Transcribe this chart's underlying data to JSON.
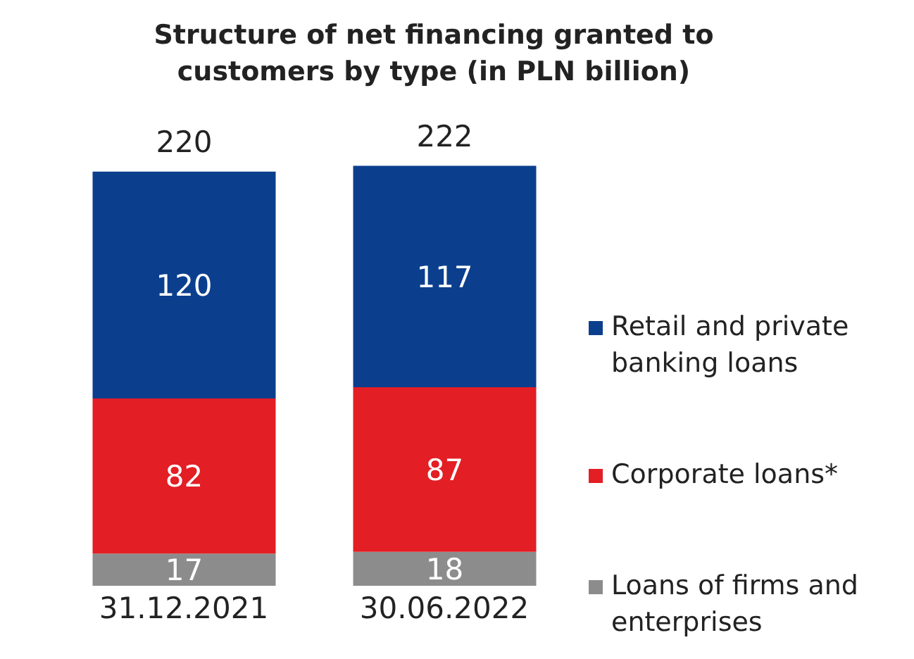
{
  "chart_data": {
    "type": "bar",
    "title": "Structure of net financing granted to customers by type (in PLN billion)",
    "categories": [
      "31.12.2021",
      "30.06.2022"
    ],
    "stacked": true,
    "data_labels": true,
    "totals": [
      "220",
      "222"
    ],
    "legend": "right",
    "tick_labels": "x",
    "series": [
      {
        "name": "Loans of firms and enterprises",
        "color": "#8c8c8c",
        "values": [
          17,
          18
        ]
      },
      {
        "name": "Corporate loans*",
        "color": "#e31e24",
        "values": [
          82,
          87
        ]
      },
      {
        "name": "Retail and private banking loans",
        "color": "#0b3f8e",
        "values": [
          120,
          117
        ]
      }
    ]
  }
}
